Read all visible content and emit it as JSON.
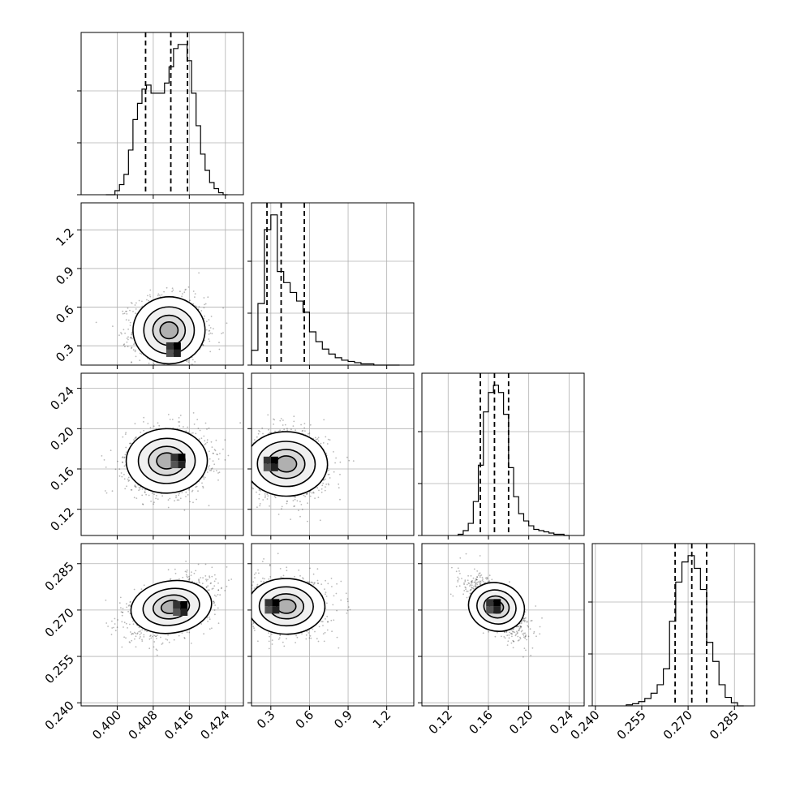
{
  "chart_data": {
    "type": "corner",
    "title": "",
    "parameters": [
      {
        "name": "",
        "range": [
          0.392,
          0.428
        ],
        "ticks": [
          0.4,
          0.408,
          0.416,
          0.424
        ],
        "tick_labels": [
          "0.400",
          "0.408",
          "0.416",
          "0.424"
        ],
        "quantiles": [
          0.4063,
          0.4119,
          0.4156
        ]
      },
      {
        "name": "",
        "range": [
          0.15,
          1.41
        ],
        "ticks": [
          0.3,
          0.6,
          0.9,
          1.2
        ],
        "tick_labels": [
          "0.3",
          "0.6",
          "0.9",
          "1.2"
        ],
        "quantiles": [
          0.27,
          0.38,
          0.56
        ]
      },
      {
        "name": "",
        "range": [
          0.094,
          0.255
        ],
        "ticks": [
          0.12,
          0.16,
          0.2,
          0.24
        ],
        "tick_labels": [
          "0.12",
          "0.16",
          "0.20",
          "0.24"
        ],
        "quantiles": [
          0.152,
          0.166,
          0.18
        ]
      },
      {
        "name": "",
        "range": [
          0.239,
          0.2915
        ],
        "ticks": [
          0.24,
          0.255,
          0.27,
          0.285
        ],
        "tick_labels": [
          "0.240",
          "0.255",
          "0.270",
          "0.285"
        ],
        "quantiles": [
          0.2658,
          0.2712,
          0.276
        ]
      }
    ],
    "histograms": [
      {
        "param": 0,
        "bin_edges": [
          0.3975,
          0.3995,
          0.4005,
          0.4015,
          0.4025,
          0.4035,
          0.4045,
          0.4055,
          0.4065,
          0.4075,
          0.4085,
          0.4095,
          0.4105,
          0.4115,
          0.4125,
          0.4135,
          0.4145,
          0.4155,
          0.4165,
          0.4175,
          0.4185,
          0.4195,
          0.4205,
          0.4215,
          0.4225,
          0.4235,
          0.4245
        ],
        "counts": [
          0,
          2,
          5,
          10,
          22,
          37,
          45,
          52,
          54,
          50,
          50,
          50,
          55,
          63,
          72,
          74,
          74,
          66,
          50,
          34,
          20,
          12,
          6,
          3,
          1,
          0
        ]
      },
      {
        "param": 1,
        "bin_edges": [
          0.15,
          0.2,
          0.25,
          0.3,
          0.35,
          0.4,
          0.45,
          0.5,
          0.55,
          0.6,
          0.65,
          0.7,
          0.75,
          0.8,
          0.85,
          0.9,
          0.95,
          1.0,
          1.05,
          1.1,
          1.15,
          1.2,
          1.25,
          1.3
        ],
        "counts": [
          12,
          50,
          110,
          122,
          76,
          67,
          59,
          52,
          43,
          27,
          19,
          13,
          9,
          6,
          4,
          3,
          2,
          1,
          1,
          0,
          0,
          0,
          0
        ]
      },
      {
        "param": 2,
        "bin_edges": [
          0.13,
          0.135,
          0.14,
          0.145,
          0.15,
          0.155,
          0.16,
          0.165,
          0.17,
          0.175,
          0.18,
          0.185,
          0.19,
          0.195,
          0.2,
          0.205,
          0.21,
          0.215,
          0.22,
          0.225,
          0.23,
          0.235,
          0.24
        ],
        "counts": [
          1,
          4,
          10,
          28,
          58,
          102,
          118,
          124,
          118,
          100,
          56,
          32,
          18,
          12,
          8,
          5,
          4,
          3,
          2,
          1,
          1,
          0
        ]
      },
      {
        "param": 3,
        "bin_edges": [
          0.25,
          0.252,
          0.254,
          0.256,
          0.258,
          0.26,
          0.262,
          0.264,
          0.266,
          0.268,
          0.27,
          0.272,
          0.274,
          0.276,
          0.278,
          0.28,
          0.282,
          0.284,
          0.286,
          0.288
        ],
        "counts": [
          1,
          2,
          4,
          7,
          12,
          20,
          35,
          80,
          117,
          136,
          142,
          130,
          110,
          60,
          42,
          20,
          8,
          3,
          0
        ]
      }
    ],
    "scatter_panels": [
      {
        "x": 0,
        "y": 1,
        "mean": [
          0.4115,
          0.42
        ],
        "sd": [
          0.004,
          0.13
        ],
        "corr": 0.0,
        "peak": [
          0.4125,
          0.27
        ]
      },
      {
        "x": 0,
        "y": 2,
        "mean": [
          0.411,
          0.168
        ],
        "sd": [
          0.0045,
          0.016
        ],
        "corr": 0.05,
        "peak": [
          0.4135,
          0.168
        ]
      },
      {
        "x": 1,
        "y": 2,
        "mean": [
          0.42,
          0.165
        ],
        "sd": [
          0.16,
          0.016
        ],
        "corr": -0.05,
        "peak": [
          0.3,
          0.165
        ]
      },
      {
        "x": 0,
        "y": 3,
        "mean": [
          0.412,
          0.271
        ],
        "sd": [
          0.0045,
          0.0045
        ],
        "corr": 0.45,
        "peak": [
          0.414,
          0.2705
        ]
      },
      {
        "x": 1,
        "y": 3,
        "mean": [
          0.42,
          0.2712
        ],
        "sd": [
          0.15,
          0.0045
        ],
        "corr": -0.05,
        "peak": [
          0.31,
          0.2712
        ]
      },
      {
        "x": 2,
        "y": 3,
        "mean": [
          0.168,
          0.271
        ],
        "sd": [
          0.014,
          0.0045
        ],
        "corr": -0.65,
        "peak": [
          0.165,
          0.2712
        ]
      }
    ],
    "grid": true,
    "legend": "none",
    "colors": {
      "line": "#000000",
      "grid": "#b0b0b0",
      "points": "#000000"
    }
  }
}
